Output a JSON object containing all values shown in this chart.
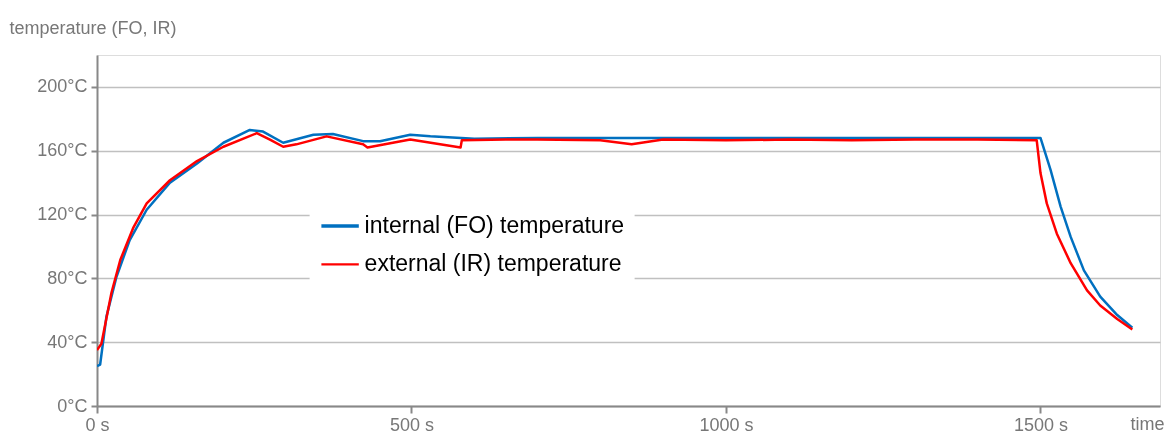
{
  "chart_data": {
    "type": "line",
    "ylabel": "temperature (FO, IR)",
    "xlabel": "time",
    "xlim": [
      0,
      1690
    ],
    "ylim": [
      0,
      220
    ],
    "xticks": [
      {
        "value": 0,
        "label": "0 s"
      },
      {
        "value": 500,
        "label": "500 s"
      },
      {
        "value": 1000,
        "label": "1000 s"
      },
      {
        "value": 1500,
        "label": "1500 s"
      }
    ],
    "yticks": [
      {
        "value": 0,
        "label": "0°C"
      },
      {
        "value": 40,
        "label": "40°C"
      },
      {
        "value": 80,
        "label": "80°C"
      },
      {
        "value": 120,
        "label": "120°C"
      },
      {
        "value": 160,
        "label": "160°C"
      },
      {
        "value": 200,
        "label": "200°C"
      }
    ],
    "grid": "y",
    "legend": "center",
    "marker": "none",
    "line_style": "solid",
    "series": [
      {
        "name": "internal (FO) temperature",
        "color": "#0070c0",
        "x": [
          0,
          5,
          15,
          31,
          52,
          79,
          116,
          159,
          201,
          243,
          264,
          296,
          344,
          375,
          423,
          450,
          498,
          530,
          600,
          700,
          800,
          900,
          1000,
          1100,
          1200,
          1300,
          1400,
          1500,
          1516,
          1532,
          1548,
          1569,
          1595,
          1622,
          1646
        ],
        "values": [
          25,
          26,
          56,
          81,
          104,
          123,
          140,
          152,
          165,
          173,
          172,
          165,
          170,
          170.5,
          166,
          166,
          170,
          169,
          167.5,
          168,
          168,
          168,
          168,
          168,
          168,
          168,
          168,
          168,
          148,
          125,
          106,
          85,
          68.5,
          57,
          49
        ]
      },
      {
        "name": "external (IR) temperature",
        "color": "#ff0000",
        "x": [
          0,
          7,
          23,
          37,
          58,
          79,
          116,
          159,
          201,
          254,
          275,
          296,
          317,
          365,
          423,
          430,
          498,
          578,
          580,
          650,
          700,
          800,
          850,
          900,
          1000,
          1100,
          1200,
          1300,
          1400,
          1494,
          1500,
          1510,
          1526,
          1548,
          1574,
          1595,
          1622,
          1646
        ],
        "values": [
          35,
          39,
          71,
          91.5,
          112,
          127,
          141.5,
          153.5,
          162.5,
          171,
          167,
          162.5,
          164,
          169,
          164,
          162,
          167,
          162,
          166.5,
          167,
          167,
          166.5,
          164,
          167,
          166.5,
          167,
          166.5,
          167,
          167,
          166.5,
          146,
          127,
          108,
          89.5,
          72.5,
          63,
          54.5,
          48
        ]
      }
    ]
  }
}
